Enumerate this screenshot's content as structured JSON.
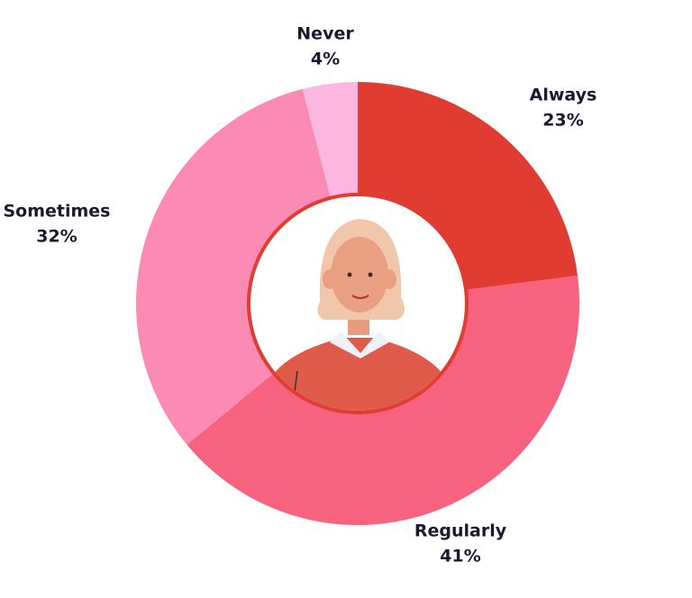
{
  "chart_data": {
    "type": "donut",
    "categories": [
      "Always",
      "Regularly",
      "Sometimes",
      "Never"
    ],
    "values": [
      23,
      41,
      32,
      4
    ],
    "value_labels": [
      "23%",
      "41%",
      "32%",
      "4%"
    ],
    "colors": [
      "#e03c31",
      "#f7627e",
      "#fb8ab4",
      "#fdb6e0"
    ]
  }
}
